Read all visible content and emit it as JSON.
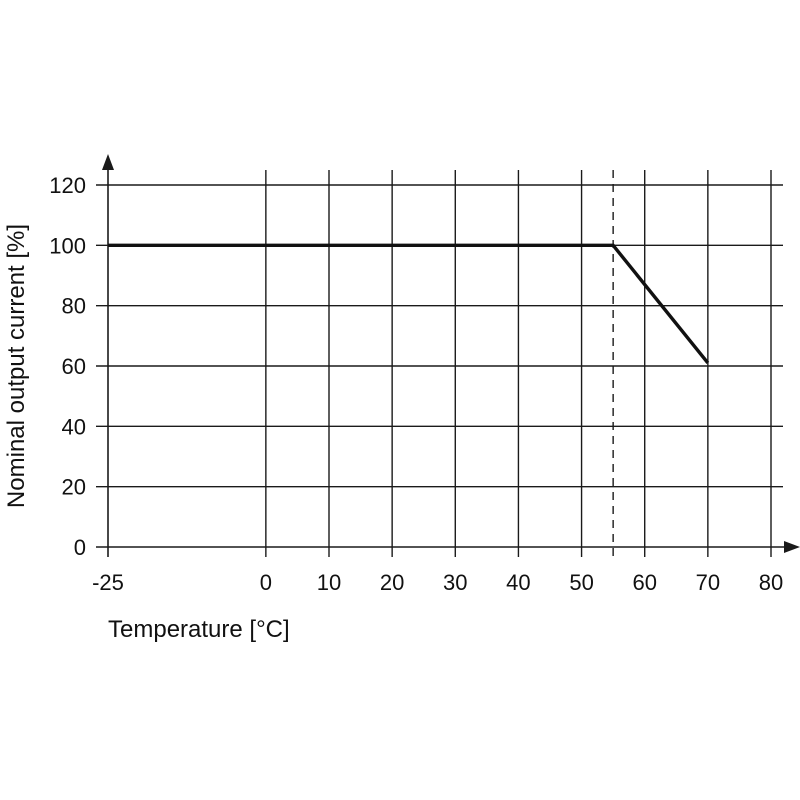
{
  "chart_data": {
    "type": "line",
    "title": "",
    "xlabel": "Temperature [°C]",
    "ylabel": "Nominal output current [%]",
    "x_ticks": [
      -25,
      0,
      10,
      20,
      30,
      40,
      50,
      60,
      70,
      80
    ],
    "y_ticks": [
      0,
      20,
      40,
      60,
      80,
      100,
      120
    ],
    "xlim": [
      -25,
      80
    ],
    "ylim": [
      0,
      120
    ],
    "grid": true,
    "series": [
      {
        "values": [
          {
            "x": -25,
            "y": 100
          },
          {
            "x": 55,
            "y": 100
          },
          {
            "x": 70,
            "y": 61
          }
        ]
      }
    ],
    "reference_lines": [
      {
        "orientation": "vertical",
        "x": 55,
        "style": "dashed"
      }
    ]
  }
}
